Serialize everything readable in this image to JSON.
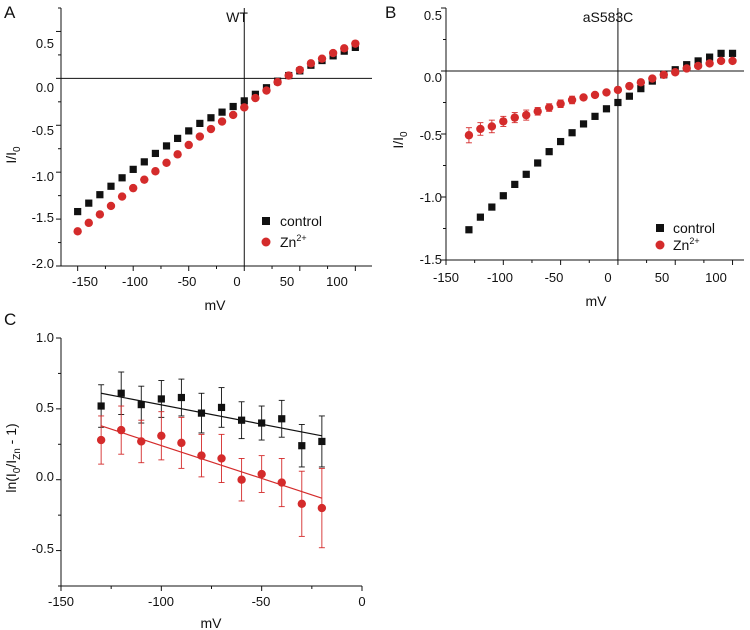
{
  "colors": {
    "control": "#111111",
    "zn": "#d42b2b",
    "axis": "#111111"
  },
  "chart_data": [
    {
      "panel": "A",
      "type": "scatter",
      "title": "WT",
      "xlabel": "mV",
      "ylabel": "I/I0",
      "xlim": [
        -165,
        115
      ],
      "ylim": [
        -2.0,
        0.75
      ],
      "xticks": [
        -150,
        -100,
        -50,
        0,
        50,
        100
      ],
      "yticks": [
        -2.0,
        -1.5,
        -1.0,
        -0.5,
        0.0,
        0.5
      ],
      "grid": false,
      "legend_position": "bottom-right",
      "series": [
        {
          "name": "control",
          "marker": "square",
          "x": [
            -150,
            -140,
            -130,
            -120,
            -110,
            -100,
            -90,
            -80,
            -70,
            -60,
            -50,
            -40,
            -30,
            -20,
            -10,
            0,
            10,
            20,
            30,
            40,
            50,
            60,
            70,
            80,
            90,
            100
          ],
          "y": [
            -1.42,
            -1.33,
            -1.24,
            -1.15,
            -1.06,
            -0.97,
            -0.89,
            -0.8,
            -0.72,
            -0.64,
            -0.56,
            -0.48,
            -0.42,
            -0.36,
            -0.3,
            -0.24,
            -0.17,
            -0.1,
            -0.03,
            0.03,
            0.08,
            0.14,
            0.19,
            0.24,
            0.29,
            0.33
          ]
        },
        {
          "name": "Zn2+",
          "marker": "circle",
          "x": [
            -150,
            -140,
            -130,
            -120,
            -110,
            -100,
            -90,
            -80,
            -70,
            -60,
            -50,
            -40,
            -30,
            -20,
            -10,
            0,
            10,
            20,
            30,
            40,
            50,
            60,
            70,
            80,
            90,
            100
          ],
          "y": [
            -1.63,
            -1.54,
            -1.45,
            -1.36,
            -1.26,
            -1.17,
            -1.08,
            -0.99,
            -0.9,
            -0.81,
            -0.71,
            -0.62,
            -0.54,
            -0.46,
            -0.39,
            -0.31,
            -0.21,
            -0.13,
            -0.04,
            0.03,
            0.09,
            0.16,
            0.21,
            0.27,
            0.32,
            0.37
          ]
        }
      ]
    },
    {
      "panel": "B",
      "type": "scatter",
      "title": "aS583C",
      "xlabel": "mV",
      "ylabel": "I/I0",
      "xlim": [
        -150,
        110
      ],
      "ylim": [
        -1.5,
        0.5
      ],
      "xticks": [
        -150,
        -100,
        -50,
        0,
        50,
        100
      ],
      "yticks": [
        -1.5,
        -1.0,
        -0.5,
        0.0,
        0.5
      ],
      "grid": false,
      "legend_position": "bottom-right",
      "series": [
        {
          "name": "control",
          "marker": "square",
          "x": [
            -130,
            -120,
            -110,
            -100,
            -90,
            -80,
            -70,
            -60,
            -50,
            -40,
            -30,
            -20,
            -10,
            0,
            10,
            20,
            30,
            40,
            50,
            60,
            70,
            80,
            90,
            100
          ],
          "y": [
            -1.26,
            -1.16,
            -1.08,
            -0.99,
            -0.9,
            -0.82,
            -0.73,
            -0.64,
            -0.56,
            -0.49,
            -0.42,
            -0.36,
            -0.3,
            -0.25,
            -0.2,
            -0.14,
            -0.08,
            -0.03,
            0.01,
            0.05,
            0.08,
            0.11,
            0.14,
            0.14
          ]
        },
        {
          "name": "Zn2+",
          "marker": "circle",
          "x": [
            -130,
            -120,
            -110,
            -100,
            -90,
            -80,
            -70,
            -60,
            -50,
            -40,
            -30,
            -20,
            -10,
            0,
            10,
            20,
            30,
            40,
            50,
            60,
            70,
            80,
            90,
            100
          ],
          "y": [
            -0.51,
            -0.46,
            -0.44,
            -0.4,
            -0.37,
            -0.35,
            -0.32,
            -0.29,
            -0.26,
            -0.23,
            -0.21,
            -0.19,
            -0.17,
            -0.15,
            -0.12,
            -0.09,
            -0.06,
            -0.03,
            -0.01,
            0.02,
            0.04,
            0.06,
            0.08,
            0.08
          ],
          "error": [
            0.06,
            0.05,
            0.05,
            0.04,
            0.04,
            0.04,
            0.03,
            0.03,
            0.03,
            0.03,
            0.02,
            0.02,
            0.02,
            0.02,
            0.02,
            0.02,
            0.01,
            0.01,
            0.01,
            0.01,
            0.01,
            0.01,
            0.01,
            0.01
          ]
        }
      ]
    },
    {
      "panel": "C",
      "type": "scatter",
      "title": "",
      "xlabel": "mV",
      "ylabel": "ln(I0/IZn - 1)",
      "xlim": [
        -150,
        0
      ],
      "ylim": [
        -0.75,
        1.0
      ],
      "xticks": [
        -150,
        -100,
        -50,
        0
      ],
      "yticks": [
        -0.5,
        0.0,
        0.5,
        1.0
      ],
      "grid": false,
      "series": [
        {
          "name": "control",
          "marker": "square",
          "x": [
            -130,
            -120,
            -110,
            -100,
            -90,
            -80,
            -70,
            -60,
            -50,
            -40,
            -30,
            -20
          ],
          "y": [
            0.52,
            0.61,
            0.53,
            0.57,
            0.58,
            0.47,
            0.51,
            0.42,
            0.4,
            0.43,
            0.24,
            0.27
          ],
          "error": [
            0.15,
            0.15,
            0.13,
            0.13,
            0.13,
            0.14,
            0.14,
            0.13,
            0.12,
            0.13,
            0.15,
            0.18
          ],
          "fit": [
            [
              -130,
              0.61
            ],
            [
              -20,
              0.31
            ]
          ]
        },
        {
          "name": "Zn2+",
          "marker": "circle",
          "x": [
            -130,
            -120,
            -110,
            -100,
            -90,
            -80,
            -70,
            -60,
            -50,
            -40,
            -30,
            -20
          ],
          "y": [
            0.28,
            0.35,
            0.27,
            0.31,
            0.26,
            0.17,
            0.15,
            0.0,
            0.04,
            -0.02,
            -0.17,
            -0.2
          ],
          "error": [
            0.17,
            0.17,
            0.15,
            0.17,
            0.18,
            0.15,
            0.17,
            0.15,
            0.13,
            0.17,
            0.23,
            0.28
          ],
          "fit": [
            [
              -130,
              0.38
            ],
            [
              -20,
              -0.13
            ]
          ]
        }
      ]
    }
  ],
  "figure": {
    "panel_a": {
      "letter": "A",
      "title": "WT",
      "xlabel": "mV",
      "ylabel_main": "I/I",
      "ylabel_sub": "0",
      "x_tick_labels": [
        "-150",
        "-100",
        "-50",
        "0",
        "50",
        "100"
      ],
      "y_tick_labels": [
        "-2.0",
        "-1.5",
        "-1.0",
        "-0.5",
        "0.0",
        "0.5"
      ],
      "legend_control": "control",
      "legend_zn_main": "Zn",
      "legend_zn_sup": "2+"
    },
    "panel_b": {
      "letter": "B",
      "title": "aS583C",
      "xlabel": "mV",
      "ylabel_main": "I/I",
      "ylabel_sub": "0",
      "x_tick_labels": [
        "-150",
        "-100",
        "-50",
        "0",
        "50",
        "100"
      ],
      "y_tick_labels": [
        "-1.5",
        "-1.0",
        "-0.5",
        "0.0",
        "0.5"
      ],
      "legend_control": "control",
      "legend_zn_main": "Zn",
      "legend_zn_sup": "2+"
    },
    "panel_c": {
      "letter": "C",
      "xlabel": "mV",
      "ylabel_pre": "ln(I",
      "ylabel_sub1": "0",
      "ylabel_mid": "/I",
      "ylabel_sub2": "Zn",
      "ylabel_post": " - 1)",
      "x_tick_labels": [
        "-150",
        "-100",
        "-50",
        "0"
      ],
      "y_tick_labels": [
        "-0.5",
        "0.0",
        "0.5",
        "1.0"
      ]
    }
  }
}
